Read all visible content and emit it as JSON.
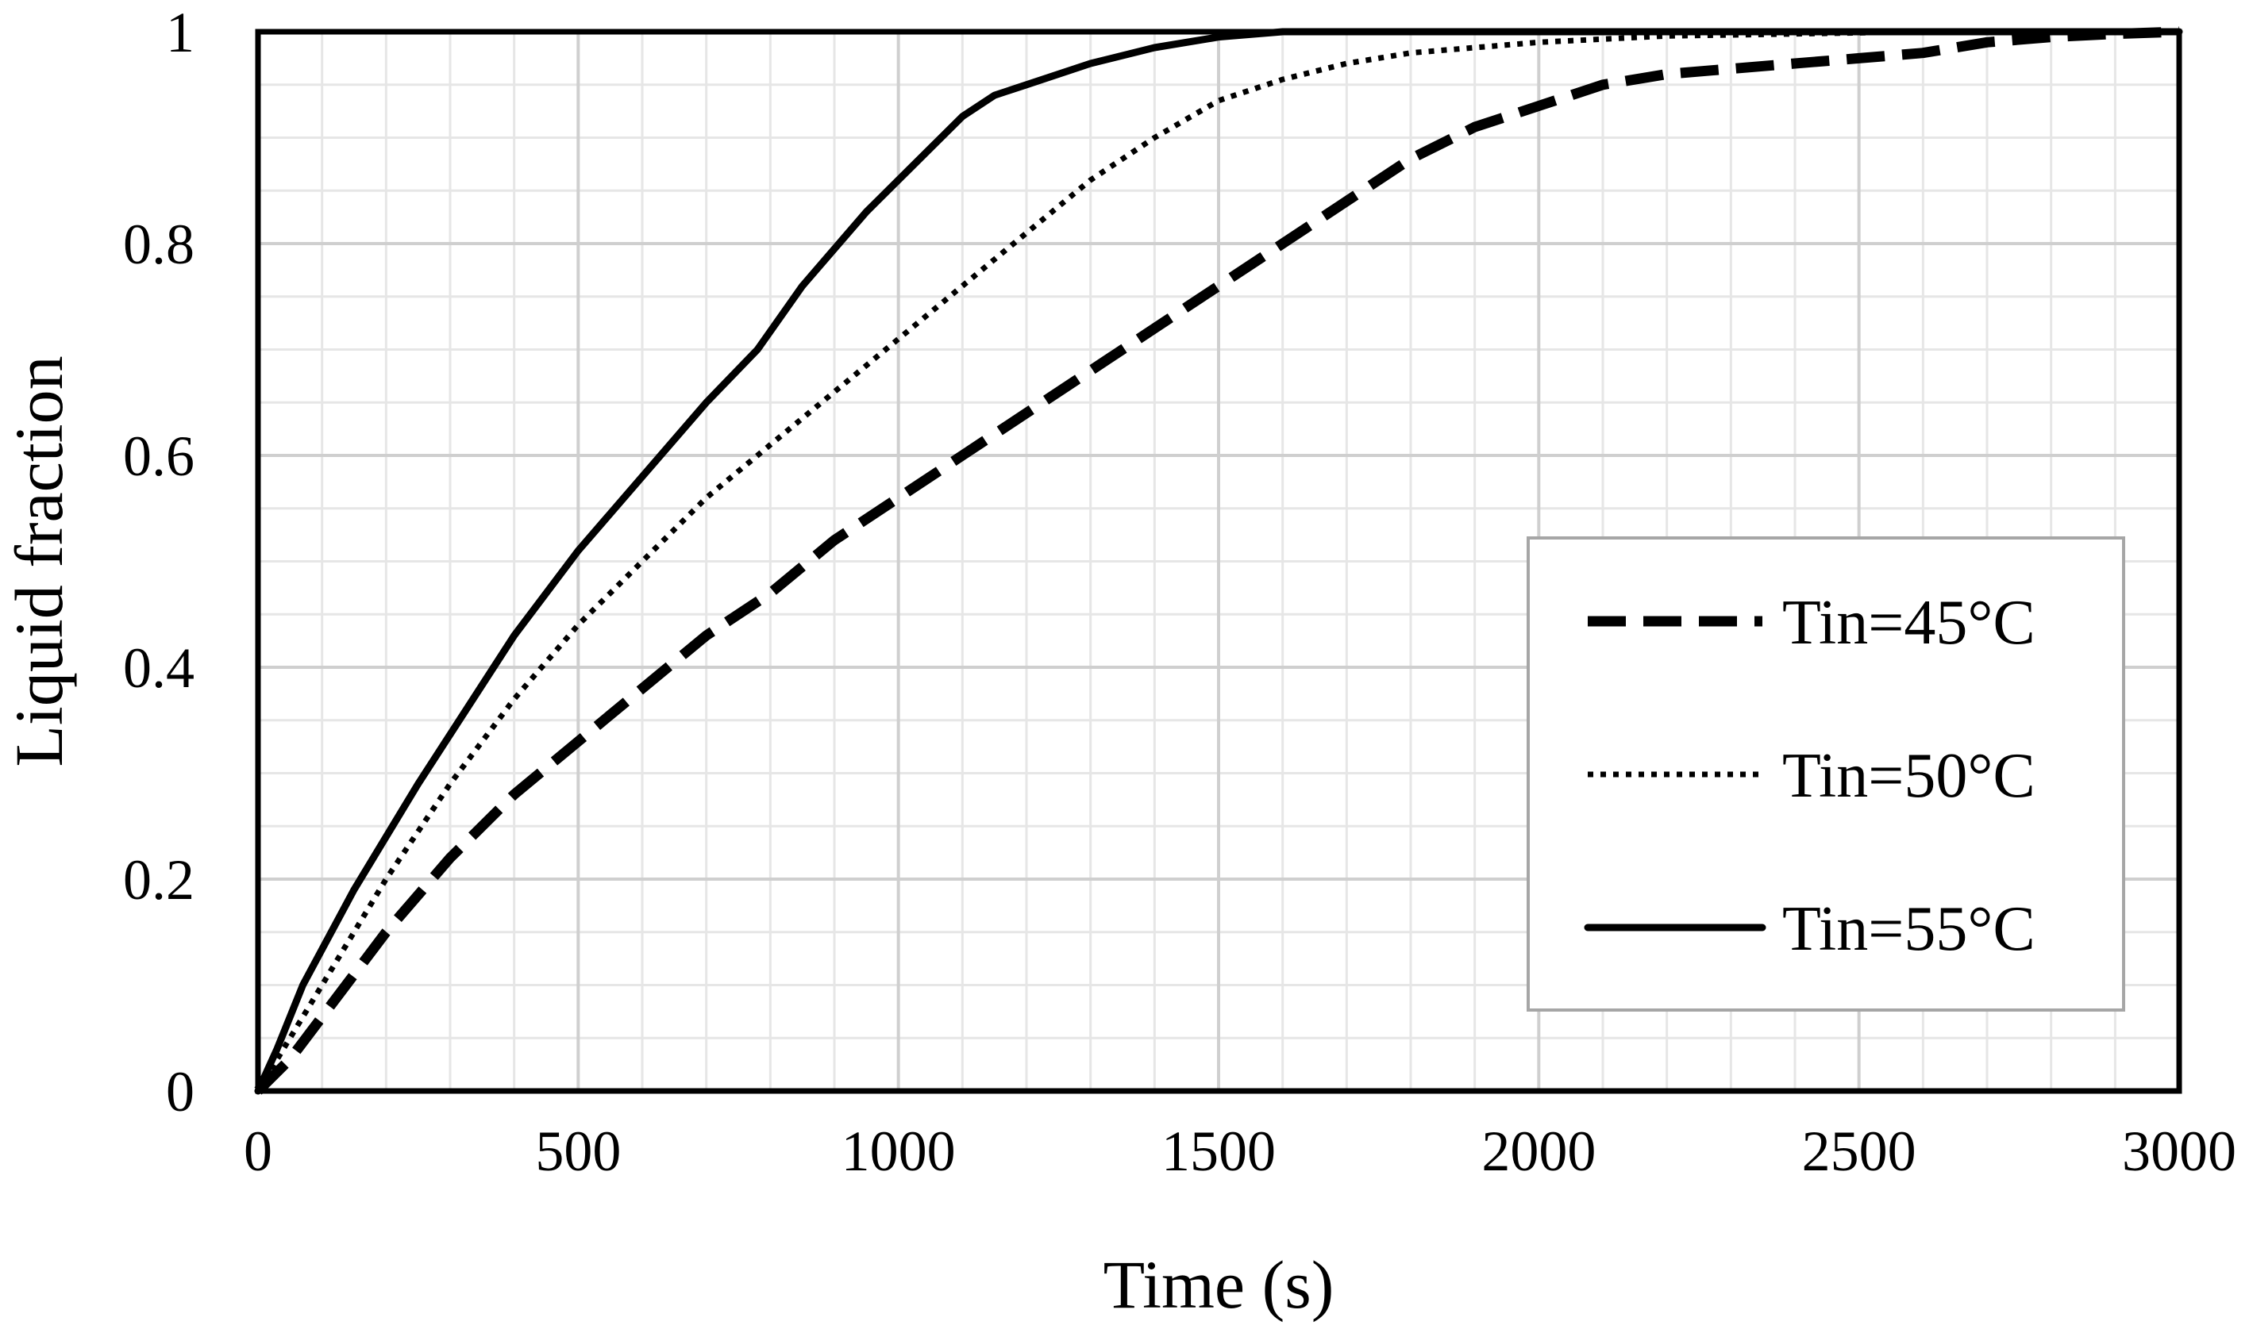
{
  "chart_data": {
    "type": "line",
    "title": "",
    "xlabel": "Time (s)",
    "ylabel": "Liquid fraction",
    "xlim": [
      0,
      3000
    ],
    "ylim": [
      0,
      1
    ],
    "x_ticks": [
      0,
      500,
      1000,
      1500,
      2000,
      2500,
      3000
    ],
    "y_ticks": [
      0,
      0.2,
      0.4,
      0.6,
      0.8,
      1
    ],
    "x_tick_labels": [
      "0",
      "500",
      "1000",
      "1500",
      "2000",
      "2500",
      "3000"
    ],
    "y_tick_labels": [
      "0",
      "0.2",
      "0.4",
      "0.6",
      "0.8",
      "1"
    ],
    "grid": true,
    "minor_grid": true,
    "legend_position": "right",
    "series": [
      {
        "name": "Tin=45°C",
        "style": "dashed",
        "color": "#000000",
        "x": [
          0,
          50,
          100,
          200,
          300,
          400,
          500,
          600,
          700,
          800,
          900,
          1000,
          1100,
          1200,
          1300,
          1400,
          1500,
          1600,
          1700,
          1800,
          1900,
          2000,
          2100,
          2200,
          2300,
          2400,
          2500,
          2600,
          2700,
          2800,
          2900,
          3000
        ],
        "y": [
          0,
          0.03,
          0.07,
          0.15,
          0.22,
          0.28,
          0.33,
          0.38,
          0.43,
          0.47,
          0.52,
          0.56,
          0.6,
          0.64,
          0.68,
          0.72,
          0.76,
          0.8,
          0.84,
          0.88,
          0.91,
          0.93,
          0.95,
          0.96,
          0.965,
          0.97,
          0.975,
          0.98,
          0.99,
          0.995,
          0.998,
          1.0
        ]
      },
      {
        "name": "Tin=50°C",
        "style": "dotted",
        "color": "#000000",
        "x": [
          0,
          50,
          100,
          200,
          300,
          400,
          500,
          600,
          700,
          800,
          900,
          1000,
          1100,
          1200,
          1300,
          1400,
          1500,
          1600,
          1700,
          1800,
          1900,
          2000,
          2100,
          2200,
          2400,
          2600,
          3000
        ],
        "y": [
          0,
          0.05,
          0.1,
          0.2,
          0.29,
          0.37,
          0.44,
          0.5,
          0.56,
          0.61,
          0.66,
          0.71,
          0.76,
          0.81,
          0.86,
          0.9,
          0.935,
          0.955,
          0.97,
          0.98,
          0.985,
          0.99,
          0.993,
          0.996,
          0.998,
          1.0,
          1.0
        ]
      },
      {
        "name": "Tin=55°C",
        "style": "solid",
        "color": "#000000",
        "x": [
          0,
          30,
          70,
          150,
          250,
          400,
          500,
          600,
          700,
          780,
          850,
          950,
          1050,
          1100,
          1150,
          1200,
          1300,
          1400,
          1500,
          1600,
          1700,
          2000,
          3000
        ],
        "y": [
          0,
          0.04,
          0.1,
          0.19,
          0.29,
          0.43,
          0.51,
          0.58,
          0.65,
          0.7,
          0.76,
          0.83,
          0.89,
          0.92,
          0.94,
          0.95,
          0.97,
          0.985,
          0.995,
          1.0,
          1.0,
          1.0,
          1.0
        ]
      }
    ]
  }
}
